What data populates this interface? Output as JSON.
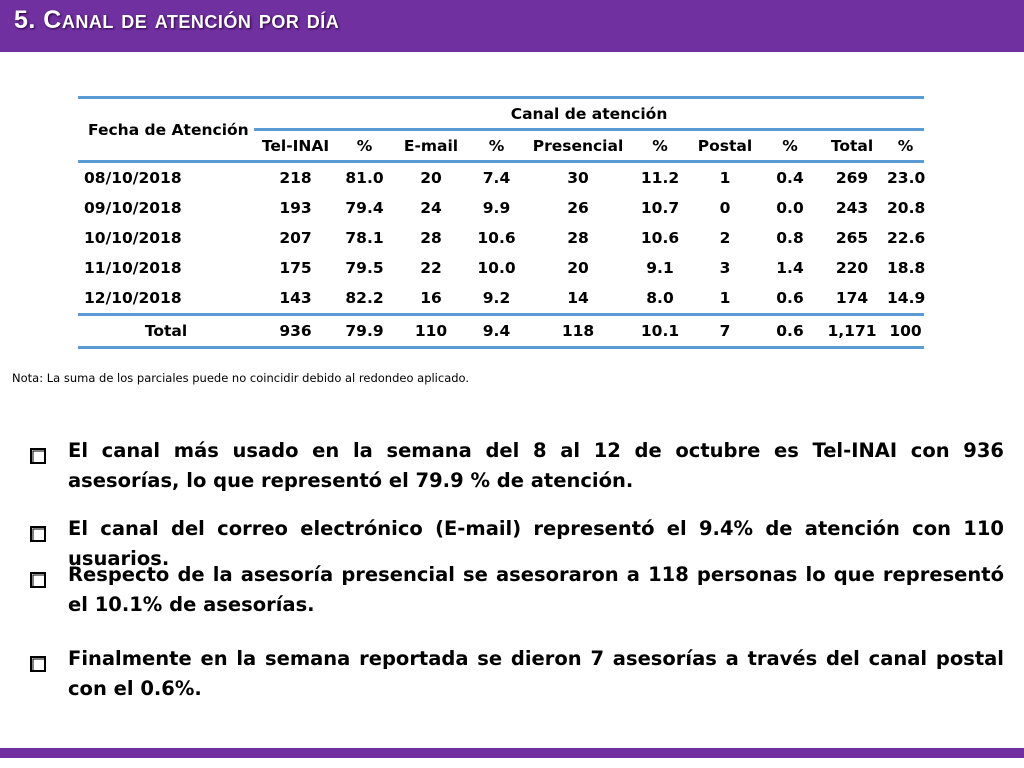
{
  "header": {
    "title": "5. Canal de atención por día"
  },
  "table": {
    "date_header": "Fecha de Atención",
    "group_header": "Canal de atención",
    "columns": [
      "Tel-INAI",
      "%",
      "E-mail",
      "%",
      "Presencial",
      "%",
      "Postal",
      "%",
      "Total",
      "%"
    ],
    "rows": [
      {
        "date": "08/10/2018",
        "cells": [
          "218",
          "81.0",
          "20",
          "7.4",
          "30",
          "11.2",
          "1",
          "0.4",
          "269",
          "23.0"
        ]
      },
      {
        "date": "09/10/2018",
        "cells": [
          "193",
          "79.4",
          "24",
          "9.9",
          "26",
          "10.7",
          "0",
          "0.0",
          "243",
          "20.8"
        ]
      },
      {
        "date": "10/10/2018",
        "cells": [
          "207",
          "78.1",
          "28",
          "10.6",
          "28",
          "10.6",
          "2",
          "0.8",
          "265",
          "22.6"
        ]
      },
      {
        "date": "11/10/2018",
        "cells": [
          "175",
          "79.5",
          "22",
          "10.0",
          "20",
          "9.1",
          "3",
          "1.4",
          "220",
          "18.8"
        ]
      },
      {
        "date": "12/10/2018",
        "cells": [
          "143",
          "82.2",
          "16",
          "9.2",
          "14",
          "8.0",
          "1",
          "0.6",
          "174",
          "14.9"
        ]
      }
    ],
    "total": {
      "label": "Total",
      "cells": [
        "936",
        "79.9",
        "110",
        "9.4",
        "118",
        "10.1",
        "7",
        "0.6",
        "1,171",
        "100"
      ]
    }
  },
  "note": "Nota: La suma de los parciales puede no coincidir debido al redondeo aplicado.",
  "bullets": [
    "El canal más usado en la semana del 8 al 12 de octubre es Tel-INAI con 936 asesorías, lo que representó el 79.9 % de atención.",
    "El canal del correo electrónico (E-mail) representó el 9.4% de atención con 110 usuarios.",
    "Respecto de la asesoría presencial se asesoraron a 118 personas lo que representó el 10.1% de asesorías.",
    "Finalmente en la semana reportada  se dieron 7 asesorías a través del canal postal con el 0.6%."
  ],
  "colors": {
    "header_bg": "#7030a0",
    "table_rule": "#5b9bd5",
    "footer_bar": "#7030a0"
  }
}
